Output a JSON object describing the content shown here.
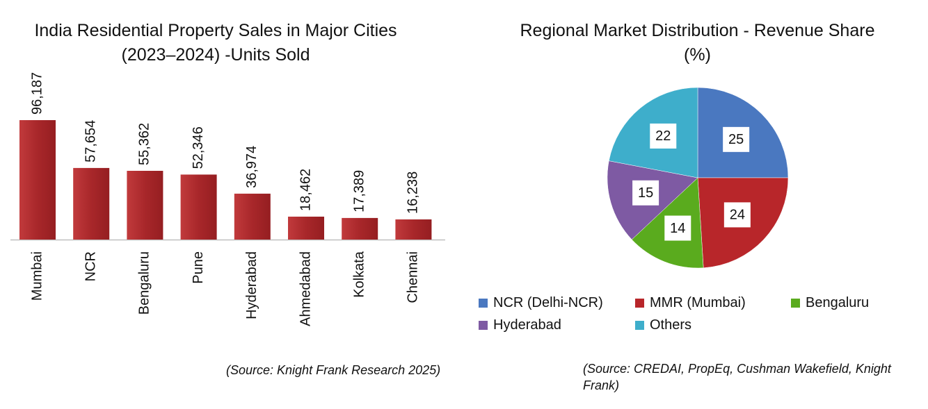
{
  "left_chart": {
    "title": "India Residential Property Sales in Major Cities (2023–2024) -Units Sold",
    "source": "(Source: Knight Frank Research 2025)"
  },
  "right_chart": {
    "title": "Regional Market Distribution - Revenue Share (%)",
    "source": "(Source: CREDAI, PropEq, Cushman Wakefield, Knight Frank)"
  },
  "colors": {
    "bar": "#a8272a",
    "bar_light": "#c13a3c",
    "axis": "#bfbfbf",
    "text": "#111111"
  },
  "chart_data": [
    {
      "type": "bar",
      "title": "India Residential Property Sales in Major Cities (2023–2024) -Units Sold",
      "categories": [
        "Mumbai",
        "NCR",
        "Bengaluru",
        "Pune",
        "Hyderabad",
        "Ahmedabad",
        "Kolkata",
        "Chennai"
      ],
      "values": [
        96187,
        57654,
        55362,
        52346,
        36974,
        18462,
        17389,
        16238
      ],
      "value_labels": [
        "96,187",
        "57,654",
        "55,362",
        "52,346",
        "36,974",
        "18,462",
        "17,389",
        "16,238"
      ],
      "ylim": [
        0,
        100000
      ],
      "grid": false,
      "xlabel": "",
      "ylabel": ""
    },
    {
      "type": "pie",
      "title": "Regional Market Distribution - Revenue Share (%)",
      "labels": [
        "NCR (Delhi-NCR)",
        "MMR (Mumbai)",
        "Bengaluru",
        "Hyderabad",
        "Others"
      ],
      "values": [
        25,
        24,
        14,
        15,
        22
      ],
      "colors": [
        "#4a78c0",
        "#b8262a",
        "#5aab1e",
        "#7e5aa3",
        "#3eaecb"
      ],
      "legend_position": "bottom"
    }
  ]
}
